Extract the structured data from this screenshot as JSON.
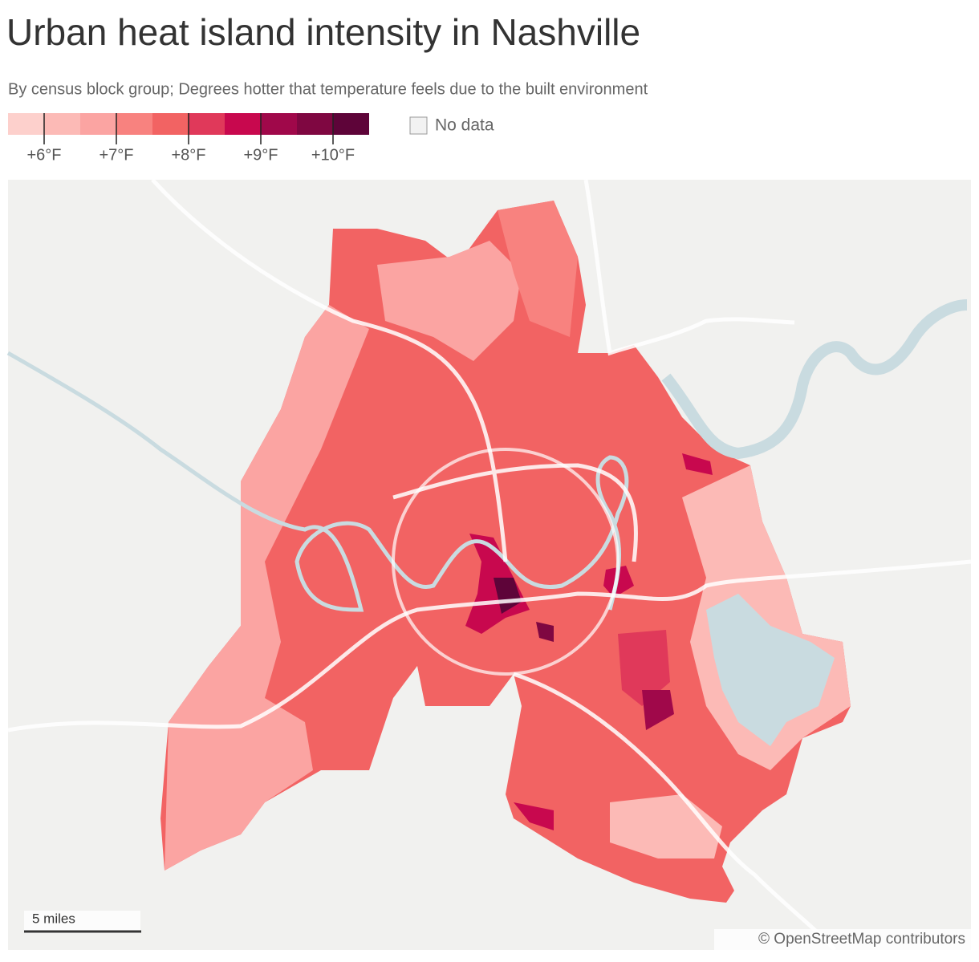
{
  "header": {
    "title": "Urban heat island intensity in Nashville",
    "subtitle": "By census block group; Degrees hotter that temperature feels due to the built environment"
  },
  "legend": {
    "colors": [
      "#fdd0cc",
      "#fcbab6",
      "#fba4a2",
      "#f8827f",
      "#f26363",
      "#e0395a",
      "#c8084e",
      "#a0084a",
      "#7f0741",
      "#5e0439"
    ],
    "lim": [
      5.5,
      10.5
    ],
    "ticks": [
      {
        "value": 6,
        "label": "+6°F"
      },
      {
        "value": 7,
        "label": "+7°F"
      },
      {
        "value": 8,
        "label": "+8°F"
      },
      {
        "value": 9,
        "label": "+9°F"
      },
      {
        "value": 10,
        "label": "+10°F"
      }
    ],
    "no_data": "No data"
  },
  "map": {
    "scale_label": "5 miles",
    "attribution": "© OpenStreetMap contributors"
  }
}
